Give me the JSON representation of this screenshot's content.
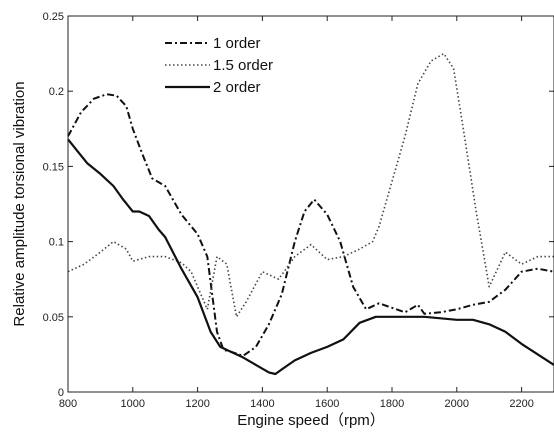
{
  "chart_data": {
    "type": "line",
    "title": "",
    "xlabel": "Engine speed（rpm）",
    "ylabel": "Relative amplitude torsional vibration",
    "xlim": [
      800,
      2300
    ],
    "ylim": [
      0,
      0.25
    ],
    "xticks": [
      800,
      1000,
      1200,
      1400,
      1600,
      1800,
      2000,
      2200
    ],
    "xtick_labels": [
      "800",
      "1000",
      "1200",
      "1400",
      "1600",
      "1800",
      "2000",
      "2200"
    ],
    "yticks": [
      0,
      0.05,
      0.1,
      0.15,
      0.2,
      0.25
    ],
    "ytick_labels": [
      "0",
      "0.05",
      "0.1",
      "0.15",
      "0.2",
      "0.25"
    ],
    "grid": false,
    "legend_position": "top-left",
    "series": [
      {
        "name": "1 order",
        "style": "dashdot",
        "color": "#111111",
        "x": [
          800,
          840,
          880,
          920,
          950,
          980,
          1000,
          1030,
          1060,
          1100,
          1150,
          1200,
          1230,
          1260,
          1280,
          1300,
          1340,
          1380,
          1420,
          1460,
          1500,
          1530,
          1560,
          1600,
          1640,
          1680,
          1720,
          1760,
          1800,
          1840,
          1880,
          1900,
          1950,
          2000,
          2050,
          2100,
          2150,
          2200,
          2250,
          2300
        ],
        "y": [
          0.17,
          0.186,
          0.195,
          0.198,
          0.197,
          0.19,
          0.175,
          0.158,
          0.142,
          0.137,
          0.118,
          0.105,
          0.09,
          0.04,
          0.028,
          0.027,
          0.024,
          0.03,
          0.045,
          0.065,
          0.1,
          0.12,
          0.128,
          0.118,
          0.1,
          0.07,
          0.055,
          0.059,
          0.056,
          0.053,
          0.058,
          0.052,
          0.053,
          0.055,
          0.058,
          0.06,
          0.068,
          0.08,
          0.082,
          0.08
        ]
      },
      {
        "name": "1.5 order",
        "style": "dotted",
        "color": "#444444",
        "x": [
          800,
          850,
          900,
          940,
          980,
          1000,
          1050,
          1100,
          1150,
          1180,
          1200,
          1230,
          1260,
          1290,
          1320,
          1350,
          1400,
          1450,
          1500,
          1550,
          1600,
          1650,
          1700,
          1740,
          1760,
          1800,
          1840,
          1880,
          1920,
          1960,
          1990,
          2020,
          2060,
          2100,
          2150,
          2200,
          2250,
          2300
        ],
        "y": [
          0.08,
          0.085,
          0.093,
          0.1,
          0.095,
          0.087,
          0.09,
          0.09,
          0.086,
          0.08,
          0.07,
          0.055,
          0.09,
          0.085,
          0.05,
          0.06,
          0.08,
          0.075,
          0.09,
          0.098,
          0.088,
          0.09,
          0.095,
          0.1,
          0.11,
          0.14,
          0.17,
          0.205,
          0.22,
          0.225,
          0.215,
          0.175,
          0.12,
          0.07,
          0.093,
          0.085,
          0.09,
          0.09
        ]
      },
      {
        "name": "2 order",
        "style": "solid",
        "color": "#111111",
        "x": [
          800,
          830,
          860,
          900,
          940,
          970,
          1000,
          1020,
          1050,
          1080,
          1100,
          1150,
          1200,
          1240,
          1270,
          1300,
          1340,
          1380,
          1420,
          1440,
          1460,
          1500,
          1550,
          1600,
          1650,
          1700,
          1750,
          1800,
          1850,
          1900,
          1950,
          2000,
          2050,
          2100,
          2150,
          2200,
          2250,
          2300
        ],
        "y": [
          0.168,
          0.16,
          0.152,
          0.145,
          0.137,
          0.128,
          0.12,
          0.12,
          0.117,
          0.108,
          0.103,
          0.082,
          0.063,
          0.04,
          0.03,
          0.027,
          0.023,
          0.018,
          0.013,
          0.012,
          0.015,
          0.021,
          0.026,
          0.03,
          0.035,
          0.046,
          0.05,
          0.05,
          0.05,
          0.05,
          0.049,
          0.048,
          0.048,
          0.045,
          0.04,
          0.032,
          0.025,
          0.018
        ]
      }
    ]
  }
}
